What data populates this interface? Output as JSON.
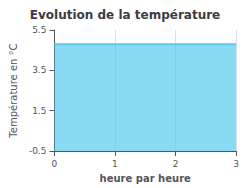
{
  "chart_data": {
    "type": "area",
    "title": "Evolution de la température",
    "xlabel": "heure par heure",
    "ylabel": "Température en °C",
    "x": [
      0,
      3
    ],
    "values": [
      4.8,
      4.8
    ],
    "color": "#55ccee",
    "xlim": [
      0,
      3
    ],
    "ylim": [
      -0.5,
      5.5
    ],
    "xticks": [
      0,
      1,
      2,
      3
    ],
    "yticks": [
      -0.5,
      1.5,
      3.5,
      5.5
    ],
    "grid": "x"
  }
}
